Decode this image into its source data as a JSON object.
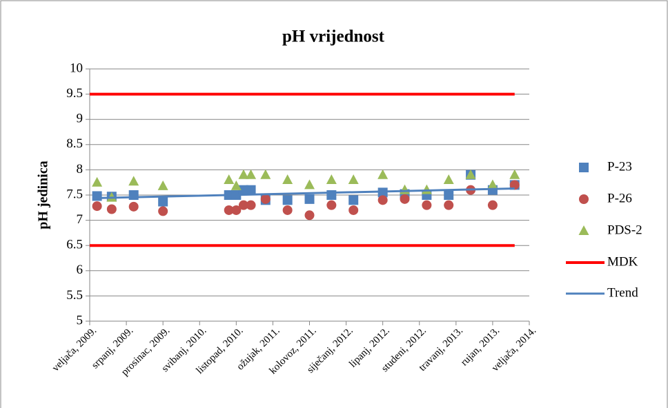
{
  "chart_data": {
    "type": "scatter",
    "title": "pH vrijednost",
    "y_label": "pH jedinica",
    "x": [
      "2009-03",
      "2009-05",
      "2009-08",
      "2009-12",
      "2010-09",
      "2010-10",
      "2010-11",
      "2010-12",
      "2011-02",
      "2011-05",
      "2011-08",
      "2011-11",
      "2012-02",
      "2012-06",
      "2012-09",
      "2012-12",
      "2013-03",
      "2013-06",
      "2013-09",
      "2013-12"
    ],
    "series": [
      {
        "name": "P-23",
        "color": "#4f81bd",
        "marker": "square",
        "values": [
          7.48,
          7.47,
          7.5,
          7.37,
          7.5,
          7.5,
          7.6,
          7.6,
          7.4,
          7.4,
          7.42,
          7.5,
          7.4,
          7.55,
          7.52,
          7.5,
          7.5,
          7.9,
          7.6,
          7.7
        ]
      },
      {
        "name": "P-26",
        "color": "#c0504d",
        "marker": "circle",
        "values": [
          7.28,
          7.22,
          7.27,
          7.18,
          7.2,
          7.2,
          7.3,
          7.3,
          7.42,
          7.2,
          7.1,
          7.3,
          7.2,
          7.4,
          7.42,
          7.3,
          7.3,
          7.6,
          7.3,
          7.7
        ]
      },
      {
        "name": "PDS-2",
        "color": "#9bbb59",
        "marker": "triangle",
        "values": [
          7.75,
          7.45,
          7.77,
          7.68,
          7.8,
          7.68,
          7.9,
          7.9,
          7.9,
          7.8,
          7.7,
          7.8,
          7.8,
          7.9,
          7.6,
          7.6,
          7.8,
          7.9,
          7.7,
          7.9
        ]
      }
    ],
    "limits": {
      "name": "MDK",
      "color": "#ff0000",
      "values": [
        9.5,
        6.5
      ]
    },
    "trend": {
      "name": "Trend",
      "color": "#4f81bd",
      "x": [
        "2009-03",
        "2013-12"
      ],
      "values": [
        7.44,
        7.63
      ]
    },
    "xlim": [
      "2009-02",
      "2014-02"
    ],
    "xticks": [
      {
        "value": "2009-02",
        "label": "veljača, 2009."
      },
      {
        "value": "2009-07",
        "label": "srpanj, 2009."
      },
      {
        "value": "2009-12",
        "label": "prosinac, 2009."
      },
      {
        "value": "2010-05",
        "label": "svibanj, 2010."
      },
      {
        "value": "2010-10",
        "label": "listopad, 2010."
      },
      {
        "value": "2011-03",
        "label": "ožujak, 2011."
      },
      {
        "value": "2011-08",
        "label": "kolovoz, 2011."
      },
      {
        "value": "2012-01",
        "label": "siječanj, 2012."
      },
      {
        "value": "2012-06",
        "label": "lipanj, 2012."
      },
      {
        "value": "2012-11",
        "label": "studeni, 2012."
      },
      {
        "value": "2013-04",
        "label": "travanj, 2013."
      },
      {
        "value": "2013-09",
        "label": "rujan, 2013."
      },
      {
        "value": "2014-02",
        "label": "veljača, 2014."
      }
    ],
    "ylim": [
      5,
      10
    ],
    "yticks": [
      5,
      5.5,
      6,
      6.5,
      7,
      7.5,
      8,
      8.5,
      9,
      9.5,
      10
    ],
    "grid": true
  }
}
